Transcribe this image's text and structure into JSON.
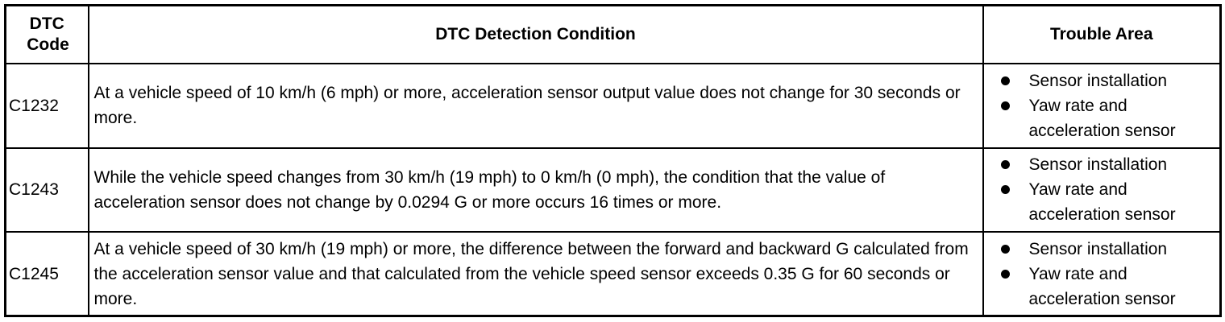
{
  "headers": {
    "code": "DTC Code",
    "condition": "DTC Detection Condition",
    "area": "Trouble Area"
  },
  "rows": [
    {
      "code": "C1232",
      "condition": "At a vehicle speed of 10 km/h (6 mph) or more, acceleration sensor output value does not change for 30 seconds or more.",
      "areas": [
        "Sensor installation",
        "Yaw rate and acceleration sensor"
      ]
    },
    {
      "code": "C1243",
      "condition": "While the vehicle speed changes from 30 km/h (19 mph) to 0 km/h (0 mph), the condition that the value of acceleration sensor does not change by 0.0294 G or more occurs 16 times or more.",
      "areas": [
        "Sensor installation",
        "Yaw rate and acceleration sensor"
      ]
    },
    {
      "code": "C1245",
      "condition": "At a vehicle speed of 30 km/h (19 mph) or more, the difference between the forward and backward G calculated from the acceleration sensor value and that calculated from the vehicle speed sensor exceeds 0.35 G for 60 seconds or more.",
      "areas": [
        "Sensor installation",
        "Yaw rate and acceleration sensor"
      ]
    }
  ]
}
